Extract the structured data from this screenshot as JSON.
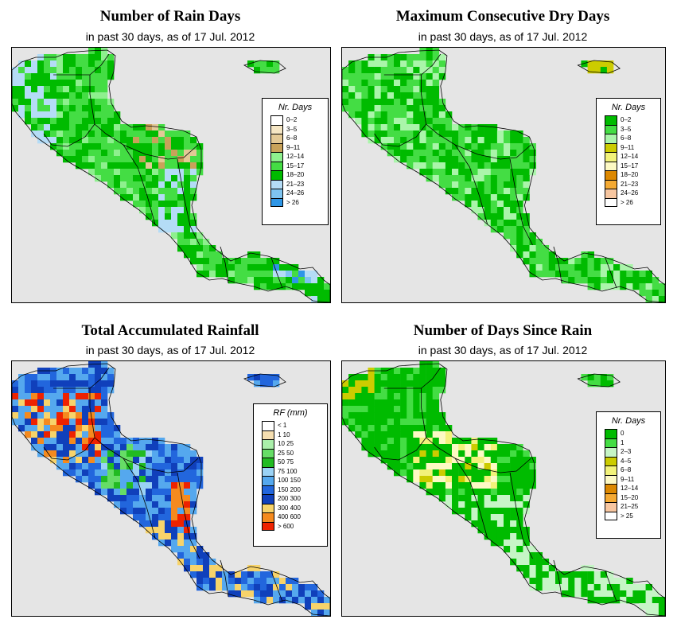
{
  "panels": [
    {
      "id": "rain-days",
      "title": "Number of Rain Days",
      "subtitle": "in past 30 days, as of  17 Jul. 2012",
      "legend_title": "Nr. Days",
      "legend": [
        {
          "label": "0–2",
          "color": "#ffffff"
        },
        {
          "label": "3–5",
          "color": "#f5e6c4"
        },
        {
          "label": "6–8",
          "color": "#e3c996"
        },
        {
          "label": "9–11",
          "color": "#c8a25a"
        },
        {
          "label": "12–14",
          "color": "#8ef08e"
        },
        {
          "label": "15–17",
          "color": "#44dd44"
        },
        {
          "label": "18–20",
          "color": "#00bb00"
        },
        {
          "label": "21–23",
          "color": "#b4dcf6"
        },
        {
          "label": "24–26",
          "color": "#7ec4f0"
        },
        {
          "label": "> 26",
          "color": "#2e96e6"
        }
      ]
    },
    {
      "id": "dry-days",
      "title": "Maximum Consecutive Dry Days",
      "subtitle": "in past 30 days, as of  17 Jul. 2012",
      "legend_title": "Nr. Days",
      "legend": [
        {
          "label": "0–2",
          "color": "#00bb00"
        },
        {
          "label": "3–5",
          "color": "#44dd44"
        },
        {
          "label": "6–8",
          "color": "#aaf5aa"
        },
        {
          "label": "9–11",
          "color": "#cccc00"
        },
        {
          "label": "12–14",
          "color": "#f2f27a"
        },
        {
          "label": "15–17",
          "color": "#fdf9c4"
        },
        {
          "label": "18–20",
          "color": "#dd8800"
        },
        {
          "label": "21–23",
          "color": "#f5aa33"
        },
        {
          "label": "24–26",
          "color": "#f7c6a0"
        },
        {
          "label": "> 26",
          "color": "#ffffff"
        }
      ]
    },
    {
      "id": "rainfall",
      "title": "Total Accumulated Rainfall",
      "subtitle": "in past 30 days, as of  17 Jul. 2012",
      "legend_title": "RF (mm)",
      "legend": [
        {
          "label": "< 1",
          "color": "#ffffff"
        },
        {
          "label": "1  10",
          "color": "#f5deb0"
        },
        {
          "label": "10  25",
          "color": "#aaf0aa"
        },
        {
          "label": "25  50",
          "color": "#66dd66"
        },
        {
          "label": "50  75",
          "color": "#22bb22"
        },
        {
          "label": "75  100",
          "color": "#9ad2f5"
        },
        {
          "label": "100  150",
          "color": "#55a8ee"
        },
        {
          "label": "150  200",
          "color": "#2266dd"
        },
        {
          "label": "200  300",
          "color": "#1040bb"
        },
        {
          "label": "300  400",
          "color": "#f7d36a"
        },
        {
          "label": "400  600",
          "color": "#f58a1e"
        },
        {
          "label": "> 600",
          "color": "#ee2200"
        }
      ]
    },
    {
      "id": "days-since-rain",
      "title": "Number of Days Since Rain",
      "subtitle": "in past 30 days, as of  17 Jul. 2012",
      "legend_title": "Nr. Days",
      "legend": [
        {
          "label": "0",
          "color": "#00bb00"
        },
        {
          "label": "1",
          "color": "#44dd44"
        },
        {
          "label": "2–3",
          "color": "#c6f5c6"
        },
        {
          "label": "4–5",
          "color": "#cccc00"
        },
        {
          "label": "6–8",
          "color": "#f2f27a"
        },
        {
          "label": "9–11",
          "color": "#fdf9c4"
        },
        {
          "label": "12–14",
          "color": "#dd8800"
        },
        {
          "label": "15–20",
          "color": "#f5aa33"
        },
        {
          "label": "21–25",
          "color": "#f7c6a0"
        },
        {
          "label": "> 25",
          "color": "#ffffff"
        }
      ]
    }
  ],
  "colors": {
    "ocean": "#e5e5e5",
    "border": "#000000"
  }
}
